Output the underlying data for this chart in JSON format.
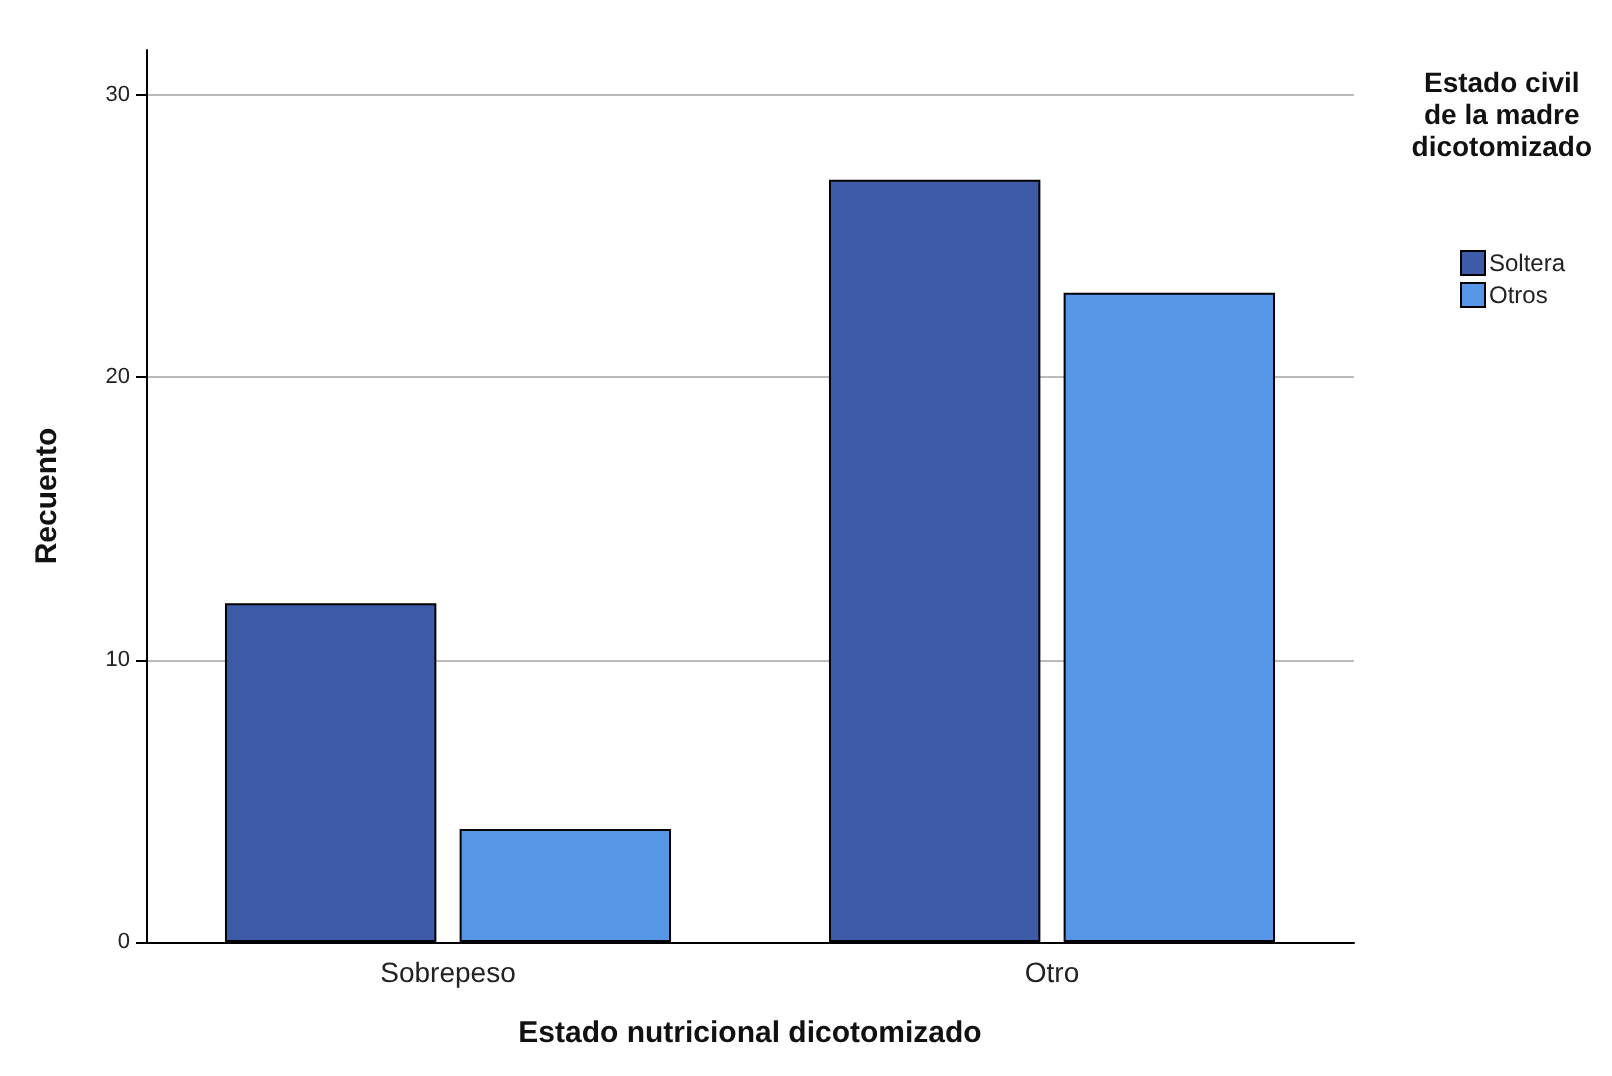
{
  "chart_data": {
    "type": "bar",
    "xlabel": "Estado nutricional dicotomizado",
    "ylabel": "Recuento",
    "legend_title": "Estado civil\nde la madre\ndicotomizado",
    "categories": [
      "Sobrepeso",
      "Otro"
    ],
    "series": [
      {
        "name": "Soltera",
        "color": "#3d5ba8",
        "values": [
          12,
          27
        ]
      },
      {
        "name": "Otros",
        "color": "#5596e6",
        "values": [
          4,
          23
        ]
      }
    ],
    "ylim": [
      0,
      31.6
    ],
    "yticks": [
      0,
      10,
      20,
      30
    ],
    "grid": "y",
    "legend": "top right"
  }
}
